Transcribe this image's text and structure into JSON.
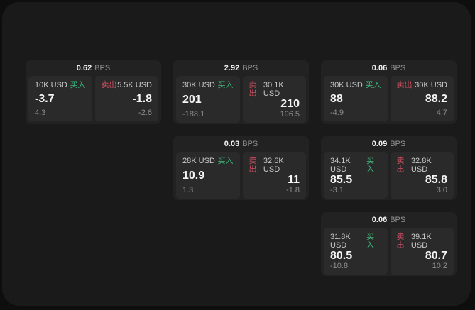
{
  "labels": {
    "bps": "BPS",
    "buy": "买入",
    "sell": "卖出"
  },
  "colors": {
    "background_outer": "#0e0e0f",
    "panel": "#1a1a1b",
    "card": "#222223",
    "tile": "#2a2a2b",
    "buy_accent": "#3fba7c",
    "sell_accent": "#d24f60"
  },
  "cards": [
    {
      "bps": "0.62",
      "buy": {
        "amount": "10K USD",
        "price": "-3.7",
        "delta": "4.3"
      },
      "sell": {
        "amount": "5.5K USD",
        "price": "-1.8",
        "delta": "-2.6"
      }
    },
    {
      "bps": "2.92",
      "buy": {
        "amount": "30K USD",
        "price": "201",
        "delta": "-188.1"
      },
      "sell": {
        "amount": "30.1K USD",
        "price": "210",
        "delta": "196.5"
      }
    },
    {
      "bps": "0.06",
      "buy": {
        "amount": "30K USD",
        "price": "88",
        "delta": "-4.9"
      },
      "sell": {
        "amount": "30K USD",
        "price": "88.2",
        "delta": "4.7"
      }
    },
    {
      "bps": "0.03",
      "buy": {
        "amount": "28K USD",
        "price": "10.9",
        "delta": "1.3"
      },
      "sell": {
        "amount": "32.6K USD",
        "price": "11",
        "delta": "-1.8"
      }
    },
    {
      "bps": "0.09",
      "buy": {
        "amount": "34.1K USD",
        "price": "85.5",
        "delta": "-3.1"
      },
      "sell": {
        "amount": "32.8K USD",
        "price": "85.8",
        "delta": "3.0"
      }
    },
    {
      "bps": "0.06",
      "buy": {
        "amount": "31.8K USD",
        "price": "80.5",
        "delta": "-10.8"
      },
      "sell": {
        "amount": "39.1K USD",
        "price": "80.7",
        "delta": "10.2"
      }
    }
  ]
}
